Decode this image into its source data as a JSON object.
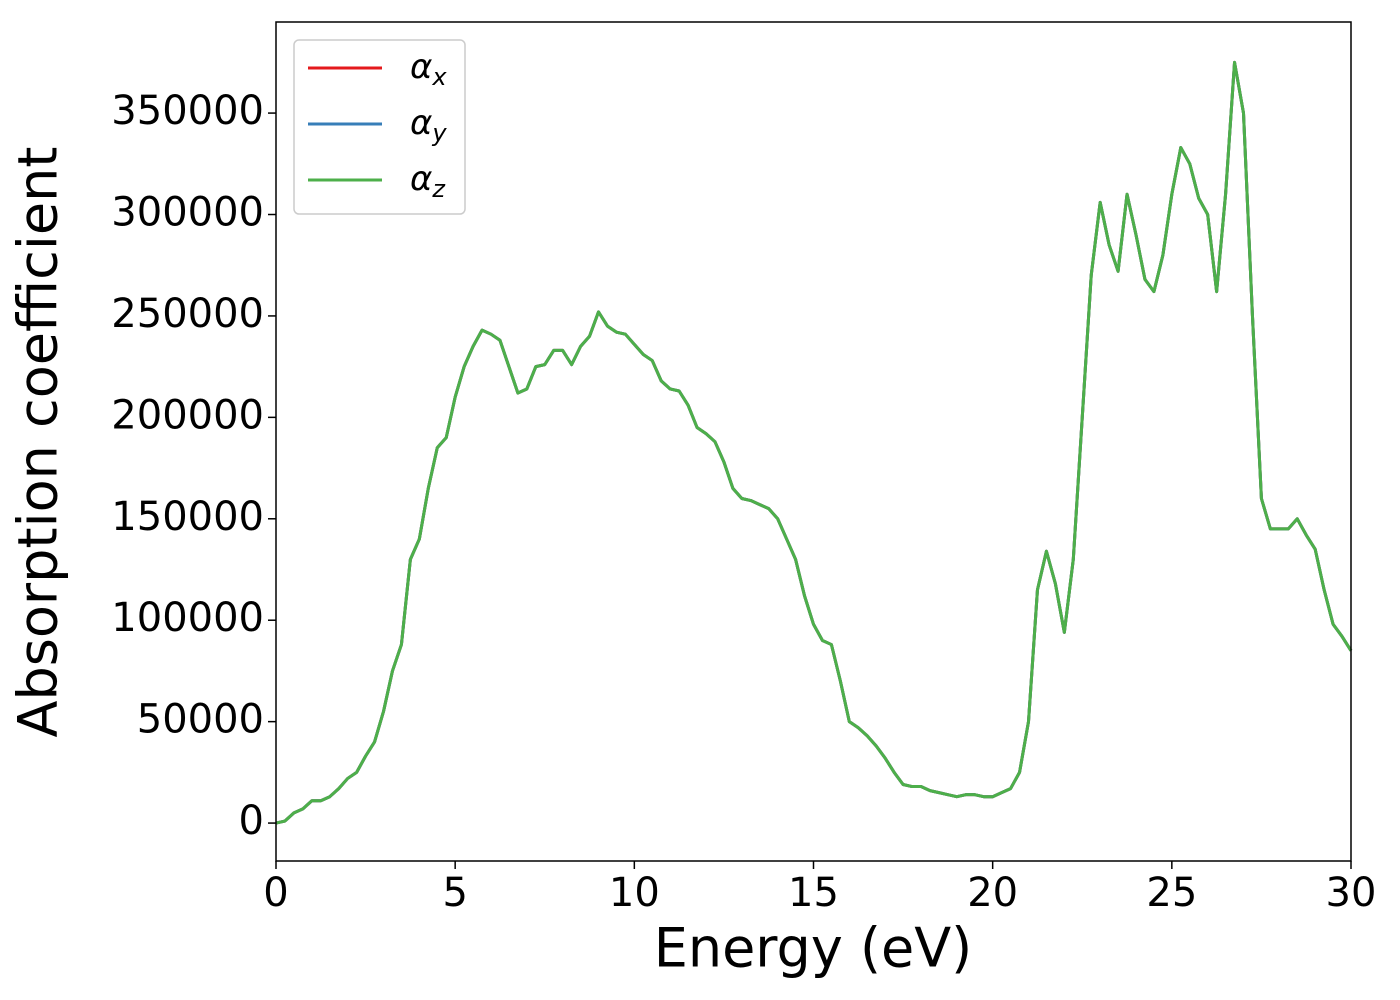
{
  "chart_data": {
    "type": "line",
    "xlabel": "Energy (eV)",
    "ylabel": "Absorption coefficient",
    "x": [
      0,
      0.25,
      0.5,
      0.75,
      1,
      1.25,
      1.5,
      1.75,
      2,
      2.25,
      2.5,
      2.75,
      3,
      3.25,
      3.5,
      3.75,
      4,
      4.25,
      4.5,
      4.75,
      5,
      5.25,
      5.5,
      5.75,
      6,
      6.25,
      6.5,
      6.75,
      7,
      7.25,
      7.5,
      7.75,
      8,
      8.25,
      8.5,
      8.75,
      9,
      9.25,
      9.5,
      9.75,
      10,
      10.25,
      10.5,
      10.75,
      11,
      11.25,
      11.5,
      11.75,
      12,
      12.25,
      12.5,
      12.75,
      13,
      13.25,
      13.5,
      13.75,
      14,
      14.25,
      14.5,
      14.75,
      15,
      15.25,
      15.5,
      15.75,
      16,
      16.25,
      16.5,
      16.75,
      17,
      17.25,
      17.5,
      17.75,
      18,
      18.25,
      18.5,
      18.75,
      19,
      19.25,
      19.5,
      19.75,
      20,
      20.25,
      20.5,
      20.75,
      21,
      21.25,
      21.5,
      21.75,
      22,
      22.25,
      22.5,
      22.75,
      23,
      23.25,
      23.5,
      23.75,
      24,
      24.25,
      24.5,
      24.75,
      25,
      25.25,
      25.5,
      25.75,
      26,
      26.25,
      26.5,
      26.75,
      27,
      27.25,
      27.5,
      27.75,
      28,
      28.25,
      28.5,
      28.75,
      29,
      29.25,
      29.5,
      29.75,
      30
    ],
    "series": [
      {
        "name": "αx",
        "color": "#e41a1c",
        "values": [
          0,
          1000,
          5000,
          7000,
          11000,
          11000,
          13000,
          17000,
          22000,
          25000,
          33000,
          40000,
          55000,
          75000,
          88000,
          130000,
          140000,
          165000,
          185000,
          190000,
          210000,
          225000,
          235000,
          243000,
          241000,
          238000,
          225000,
          212000,
          214000,
          225000,
          226000,
          233000,
          233000,
          226000,
          235000,
          240000,
          252000,
          245000,
          242000,
          241000,
          236000,
          231000,
          228000,
          218000,
          214000,
          213000,
          206000,
          195000,
          192000,
          188000,
          178000,
          165000,
          160000,
          159000,
          157000,
          155000,
          150000,
          140000,
          130000,
          112000,
          98000,
          90000,
          88000,
          70000,
          50000,
          47000,
          43000,
          38000,
          32000,
          25000,
          19000,
          18000,
          18000,
          16000,
          15000,
          14000,
          13000,
          14000,
          14000,
          13000,
          13000,
          15000,
          17000,
          25000,
          50000,
          115000,
          134000,
          118000,
          94000,
          130000,
          200000,
          270000,
          306000,
          285000,
          272000,
          310000,
          290000,
          268000,
          262000,
          280000,
          310000,
          333000,
          325000,
          308000,
          300000,
          262000,
          310000,
          375000,
          350000,
          250000,
          160000,
          145000,
          145000,
          145000,
          150000,
          142000,
          135000,
          115000,
          98000,
          92000,
          85000
        ]
      },
      {
        "name": "αy",
        "color": "#377eb8",
        "values": [
          0,
          1000,
          5000,
          7000,
          11000,
          11000,
          13000,
          17000,
          22000,
          25000,
          33000,
          40000,
          55000,
          75000,
          88000,
          130000,
          140000,
          165000,
          185000,
          190000,
          210000,
          225000,
          235000,
          243000,
          241000,
          238000,
          225000,
          212000,
          214000,
          225000,
          226000,
          233000,
          233000,
          226000,
          235000,
          240000,
          252000,
          245000,
          242000,
          241000,
          236000,
          231000,
          228000,
          218000,
          214000,
          213000,
          206000,
          195000,
          192000,
          188000,
          178000,
          165000,
          160000,
          159000,
          157000,
          155000,
          150000,
          140000,
          130000,
          112000,
          98000,
          90000,
          88000,
          70000,
          50000,
          47000,
          43000,
          38000,
          32000,
          25000,
          19000,
          18000,
          18000,
          16000,
          15000,
          14000,
          13000,
          14000,
          14000,
          13000,
          13000,
          15000,
          17000,
          25000,
          50000,
          115000,
          134000,
          118000,
          94000,
          130000,
          200000,
          270000,
          306000,
          285000,
          272000,
          310000,
          290000,
          268000,
          262000,
          280000,
          310000,
          333000,
          325000,
          308000,
          300000,
          262000,
          310000,
          375000,
          350000,
          250000,
          160000,
          145000,
          145000,
          145000,
          150000,
          142000,
          135000,
          115000,
          98000,
          92000,
          85000
        ]
      },
      {
        "name": "αz",
        "color": "#4daf4a",
        "values": [
          0,
          1000,
          5000,
          7000,
          11000,
          11000,
          13000,
          17000,
          22000,
          25000,
          33000,
          40000,
          55000,
          75000,
          88000,
          130000,
          140000,
          165000,
          185000,
          190000,
          210000,
          225000,
          235000,
          243000,
          241000,
          238000,
          225000,
          212000,
          214000,
          225000,
          226000,
          233000,
          233000,
          226000,
          235000,
          240000,
          252000,
          245000,
          242000,
          241000,
          236000,
          231000,
          228000,
          218000,
          214000,
          213000,
          206000,
          195000,
          192000,
          188000,
          178000,
          165000,
          160000,
          159000,
          157000,
          155000,
          150000,
          140000,
          130000,
          112000,
          98000,
          90000,
          88000,
          70000,
          50000,
          47000,
          43000,
          38000,
          32000,
          25000,
          19000,
          18000,
          18000,
          16000,
          15000,
          14000,
          13000,
          14000,
          14000,
          13000,
          13000,
          15000,
          17000,
          25000,
          50000,
          115000,
          134000,
          118000,
          94000,
          130000,
          200000,
          270000,
          306000,
          285000,
          272000,
          310000,
          290000,
          268000,
          262000,
          280000,
          310000,
          333000,
          325000,
          308000,
          300000,
          262000,
          310000,
          375000,
          350000,
          250000,
          160000,
          145000,
          145000,
          145000,
          150000,
          142000,
          135000,
          115000,
          98000,
          92000,
          85000
        ]
      }
    ],
    "xlim": [
      0,
      30
    ],
    "xticks": [
      0,
      5,
      10,
      15,
      20,
      25,
      30
    ],
    "ylim": [
      -18700,
      394900
    ],
    "yticks": [
      0,
      50000,
      100000,
      150000,
      200000,
      250000,
      300000,
      350000
    ],
    "grid": false,
    "legend": "upper left"
  }
}
